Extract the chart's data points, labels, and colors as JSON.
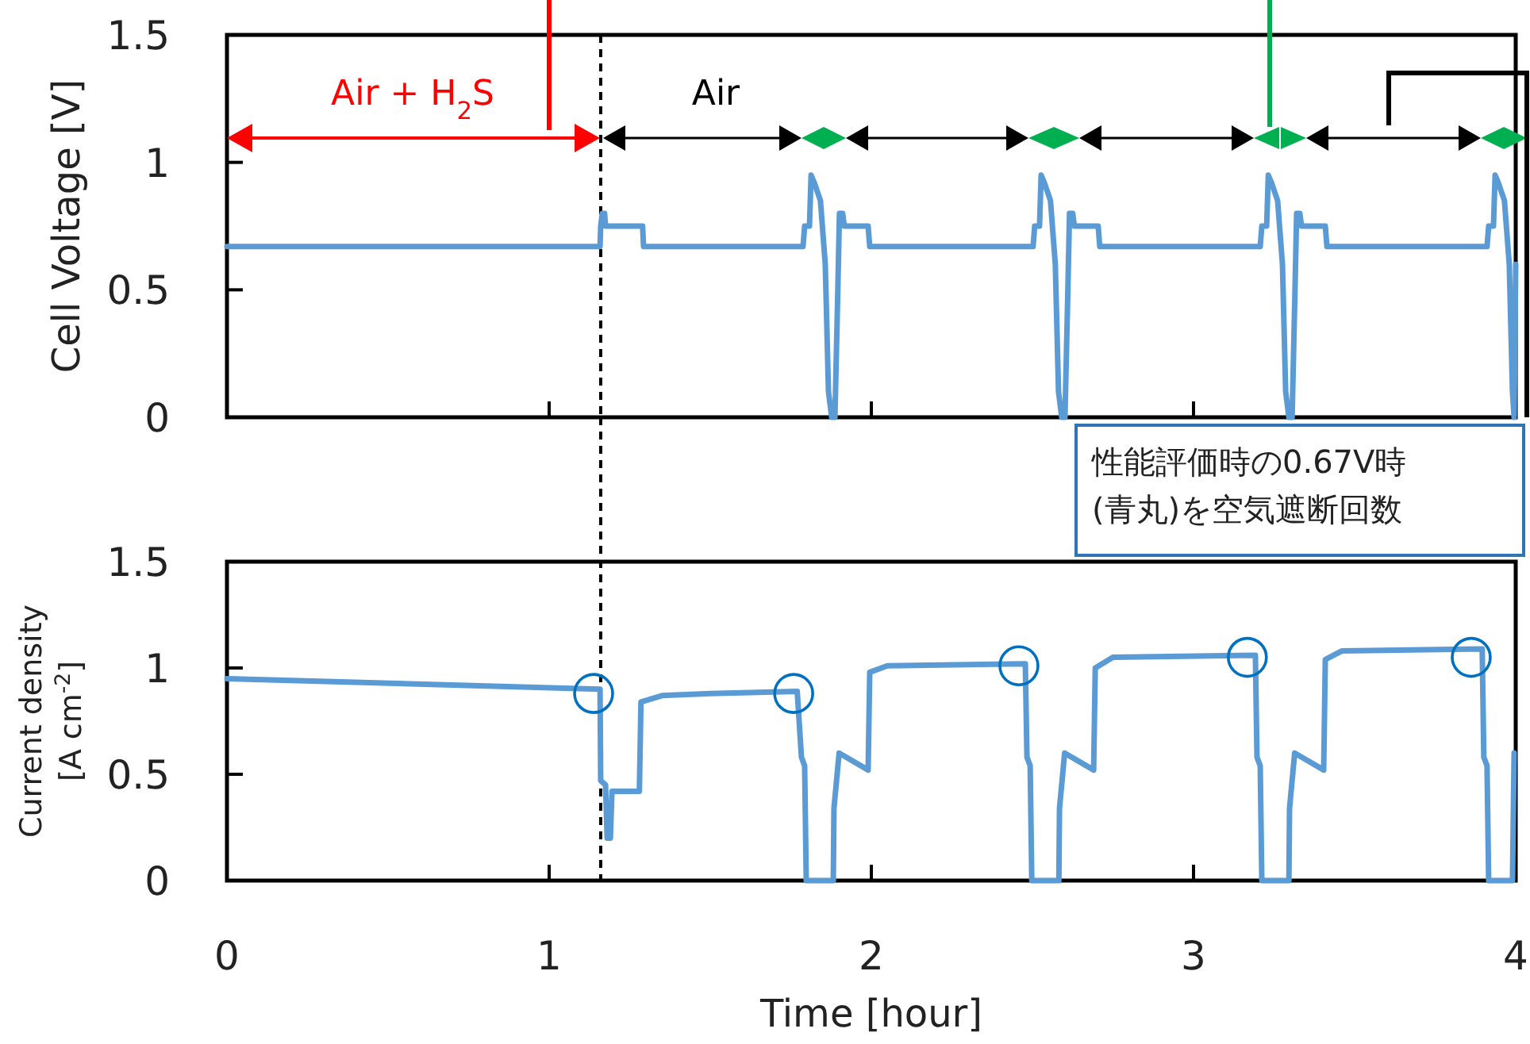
{
  "chart_data": [
    {
      "type": "line",
      "ylabel": "Cell Voltage [V]",
      "xlim": [
        0,
        4
      ],
      "xticks": [
        0,
        1,
        2,
        3,
        4
      ],
      "ylim": [
        0,
        1.5
      ],
      "yticks": [
        0,
        0.5,
        1,
        1.5
      ],
      "tick_labels": "y",
      "series": [
        {
          "color": "#5b9bd5",
          "x": [
            0,
            1.158,
            1.16,
            1.165,
            1.172,
            1.175,
            1.29,
            1.293,
            1.788,
            1.793,
            1.808,
            1.813,
            1.823,
            1.842,
            1.857,
            1.867,
            1.877,
            1.887,
            1.896,
            1.901,
            1.911,
            1.916,
            1.99,
            1.995,
            2.502,
            2.507,
            2.522,
            2.527,
            2.537,
            2.556,
            2.571,
            2.581,
            2.591,
            2.601,
            2.61,
            2.615,
            2.625,
            2.63,
            2.704,
            2.709,
            3.207,
            3.212,
            3.227,
            3.232,
            3.242,
            3.261,
            3.276,
            3.286,
            3.296,
            3.306,
            3.315,
            3.32,
            3.33,
            3.335,
            3.409,
            3.414,
            3.911,
            3.916,
            3.931,
            3.936,
            3.946,
            3.965,
            3.98,
            3.99,
            3.995,
            4.0
          ],
          "values": [
            0.67,
            0.67,
            0.75,
            0.8,
            0.8,
            0.75,
            0.75,
            0.67,
            0.67,
            0.75,
            0.75,
            0.95,
            0.92,
            0.85,
            0.6,
            0.1,
            0,
            0,
            0.5,
            0.8,
            0.8,
            0.75,
            0.75,
            0.67,
            0.67,
            0.75,
            0.75,
            0.95,
            0.92,
            0.85,
            0.6,
            0.1,
            0,
            0,
            0.5,
            0.8,
            0.8,
            0.75,
            0.75,
            0.67,
            0.67,
            0.75,
            0.75,
            0.95,
            0.92,
            0.85,
            0.6,
            0.1,
            0,
            0,
            0.5,
            0.8,
            0.8,
            0.75,
            0.75,
            0.67,
            0.67,
            0.75,
            0.75,
            0.95,
            0.92,
            0.85,
            0.6,
            0.1,
            0,
            0.6
          ]
        }
      ],
      "ref_lines": [
        {
          "axis": "x",
          "value": 1.16,
          "color": "#000000",
          "line_style": "dashed"
        }
      ],
      "annotations": [
        "Air + H$_{2}$S",
        "Air"
      ]
    },
    {
      "type": "line",
      "ylabel": "Current density\n[A cm$^{-2}$]",
      "xlabel": "Time [hour]",
      "xlim": [
        0,
        4
      ],
      "xticks": [
        0,
        1,
        2,
        3,
        4
      ],
      "ylim": [
        0,
        1.5
      ],
      "yticks": [
        0,
        0.5,
        1,
        1.5
      ],
      "series": [
        {
          "color": "#5b9bd5",
          "x": [
            0,
            1.158,
            1.16,
            1.175,
            1.18,
            1.19,
            1.195,
            1.28,
            1.285,
            1.35,
            1.5,
            1.77,
            1.783,
            1.793,
            1.798,
            1.882,
            1.884,
            1.9,
            1.99,
            1.995,
            2.05,
            2.478,
            2.483,
            2.493,
            2.498,
            2.582,
            2.584,
            2.6,
            2.69,
            2.695,
            2.75,
            3.192,
            3.197,
            3.207,
            3.212,
            3.296,
            3.298,
            3.314,
            3.404,
            3.409,
            3.46,
            3.896,
            3.901,
            3.911,
            3.916,
            3.99,
            3.995
          ],
          "values": [
            0.95,
            0.9,
            0.47,
            0.45,
            0.2,
            0.2,
            0.42,
            0.42,
            0.84,
            0.87,
            0.88,
            0.89,
            0.58,
            0.54,
            0,
            0,
            0.34,
            0.6,
            0.52,
            0.98,
            1.01,
            1.02,
            0.58,
            0.54,
            0,
            0,
            0.34,
            0.6,
            0.52,
            1.0,
            1.05,
            1.06,
            0.58,
            0.54,
            0,
            0,
            0.34,
            0.6,
            0.52,
            1.04,
            1.08,
            1.09,
            0.58,
            0.54,
            0,
            0,
            0.6
          ]
        },
        {
          "type": "scatter",
          "marker": "circle",
          "color": "#0070c0",
          "x": [
            1.138,
            1.759,
            2.458,
            3.167,
            3.862
          ],
          "values": [
            0.88,
            0.88,
            1.01,
            1.05,
            1.05
          ]
        }
      ],
      "ref_lines": [
        {
          "axis": "x",
          "value": 1.16,
          "color": "#000000",
          "line_style": "dashed"
        }
      ],
      "annotations": [
        "性能評価時の0.67V時",
        "(青丸)を空気遮断回数"
      ]
    }
  ]
}
